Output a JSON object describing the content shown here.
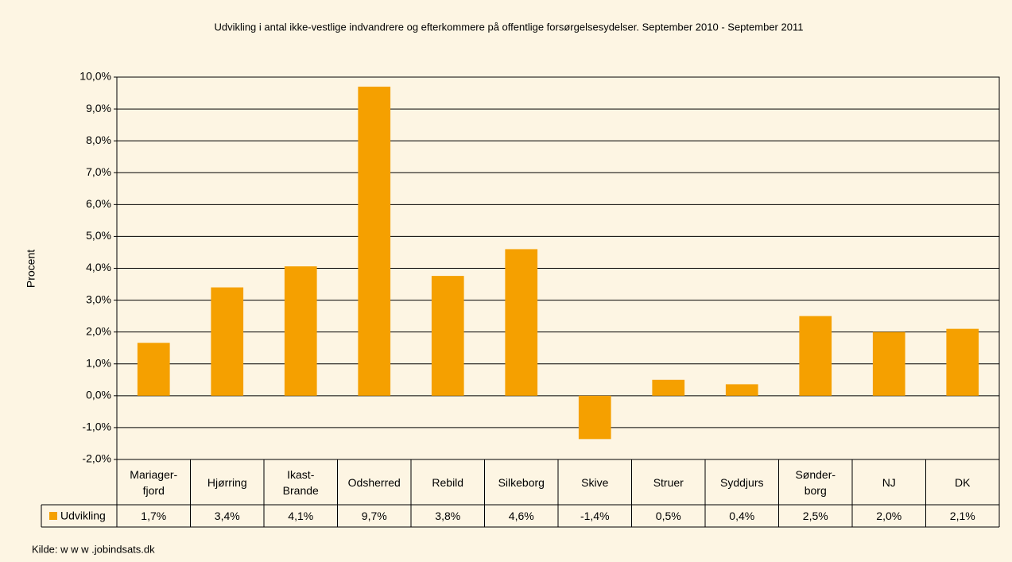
{
  "chart_data": {
    "type": "bar",
    "title": "Udvikling i antal ikke-vestlige indvandrere og efterkommere på offentlige forsørgelsesydelser. September 2010 - September 2011",
    "y_label": "Procent",
    "source": "Kilde: w w w .jobindsats.dk",
    "categories": [
      "Mariager-\nfjord",
      "Hjørring",
      "Ikast-\nBrande",
      "Odsherred",
      "Rebild",
      "Silkeborg",
      "Skive",
      "Struer",
      "Syddjurs",
      "Sønder-\nborg",
      "NJ",
      "DK"
    ],
    "series": [
      {
        "name": "Udvikling",
        "color": "#f5a000",
        "values": [
          1.66,
          3.4,
          4.06,
          9.7,
          3.76,
          4.6,
          -1.36,
          0.5,
          0.36,
          2.5,
          2.0,
          2.1
        ],
        "value_labels": [
          "1,7%",
          "3,4%",
          "4,1%",
          "9,7%",
          "3,8%",
          "4,6%",
          "-1,4%",
          "0,5%",
          "0,4%",
          "2,5%",
          "2,0%",
          "2,1%"
        ]
      }
    ],
    "ylim": [
      -2,
      10
    ],
    "yticks": [
      {
        "value": -2,
        "label": "-2,0%"
      },
      {
        "value": -1,
        "label": "-1,0%"
      },
      {
        "value": 0,
        "label": "0,0%"
      },
      {
        "value": 1,
        "label": "1,0%"
      },
      {
        "value": 2,
        "label": "2,0%"
      },
      {
        "value": 3,
        "label": "3,0%"
      },
      {
        "value": 4,
        "label": "4,0%"
      },
      {
        "value": 5,
        "label": "5,0%"
      },
      {
        "value": 6,
        "label": "6,0%"
      },
      {
        "value": 7,
        "label": "7,0%"
      },
      {
        "value": 8,
        "label": "8,0%"
      },
      {
        "value": 9,
        "label": "9,0%"
      },
      {
        "value": 10,
        "label": "10,0%"
      }
    ],
    "grid": true
  }
}
